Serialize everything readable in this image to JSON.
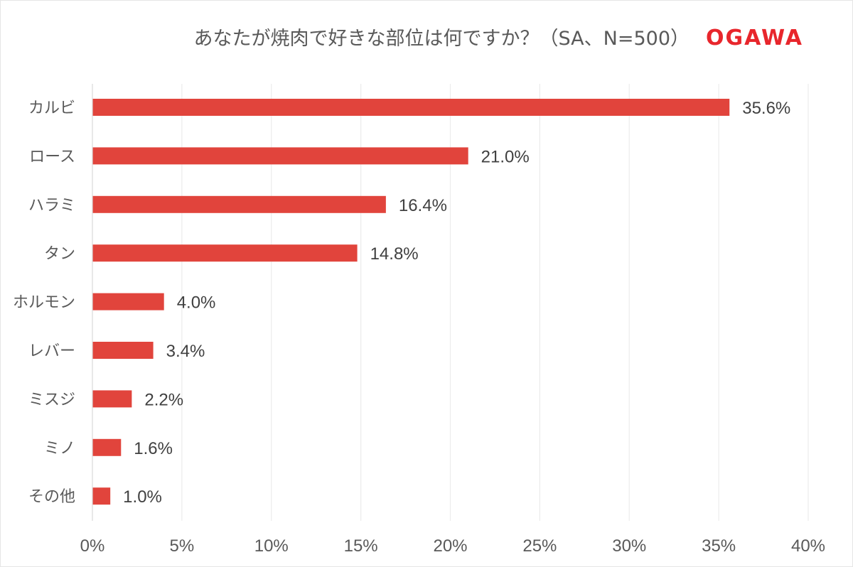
{
  "chart_data": {
    "type": "bar",
    "orientation": "horizontal",
    "title": "あなたが焼肉で好きな部位は何ですか？（SA、N=500）",
    "logo_text": "OGAWA",
    "categories": [
      "カルビ",
      "ロース",
      "ハラミ",
      "タン",
      "ホルモン",
      "レバー",
      "ミスジ",
      "ミノ",
      "その他"
    ],
    "values": [
      35.6,
      21.0,
      16.4,
      14.8,
      4.0,
      3.4,
      2.2,
      1.6,
      1.0
    ],
    "value_labels": [
      "35.6%",
      "21.0%",
      "16.4%",
      "14.8%",
      "4.0%",
      "3.4%",
      "2.2%",
      "1.6%",
      "1.0%"
    ],
    "x_ticks": [
      0,
      5,
      10,
      15,
      20,
      25,
      30,
      35,
      40
    ],
    "x_tick_labels": [
      "0%",
      "5%",
      "10%",
      "15%",
      "20%",
      "25%",
      "30%",
      "35%",
      "40%"
    ],
    "xlim": [
      0,
      40
    ],
    "xlabel": "",
    "ylabel": "",
    "grid": "vertical",
    "legend": "none",
    "bar_color": "#e1443c",
    "grid_color": "#ececec"
  }
}
